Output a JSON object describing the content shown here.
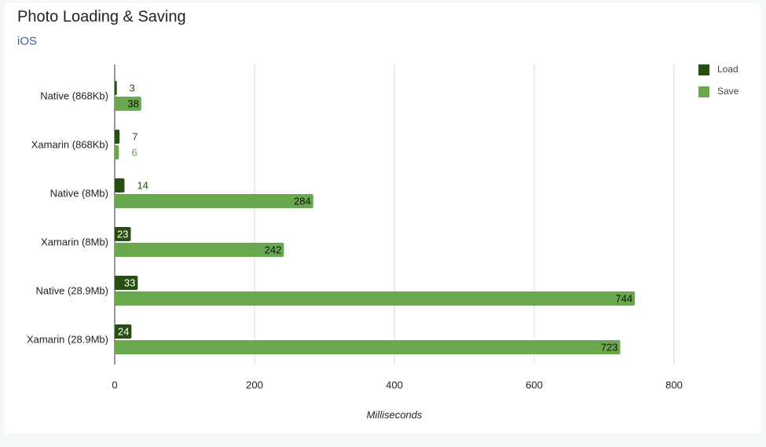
{
  "chart_data": {
    "type": "bar",
    "orientation": "horizontal",
    "title": "Photo Loading & Saving",
    "subtitle": "iOS",
    "x_label": "Milliseconds",
    "categories": [
      "Native (868Kb)",
      "Xamarin (868Kb)",
      "Native (8Mb)",
      "Xamarin (8Mb)",
      "Native (28.9Mb)",
      "Xamarin (28.9Mb)"
    ],
    "series": [
      {
        "name": "Load",
        "color": "#274e13",
        "values": [
          3,
          7,
          14,
          23,
          33,
          24
        ]
      },
      {
        "name": "Save",
        "color": "#6aa84f",
        "values": [
          38,
          6,
          284,
          242,
          744,
          723
        ]
      }
    ],
    "xlim": [
      0,
      800
    ],
    "xticks": [
      0,
      200,
      400,
      600,
      800
    ],
    "grid": true,
    "legend": "right"
  }
}
